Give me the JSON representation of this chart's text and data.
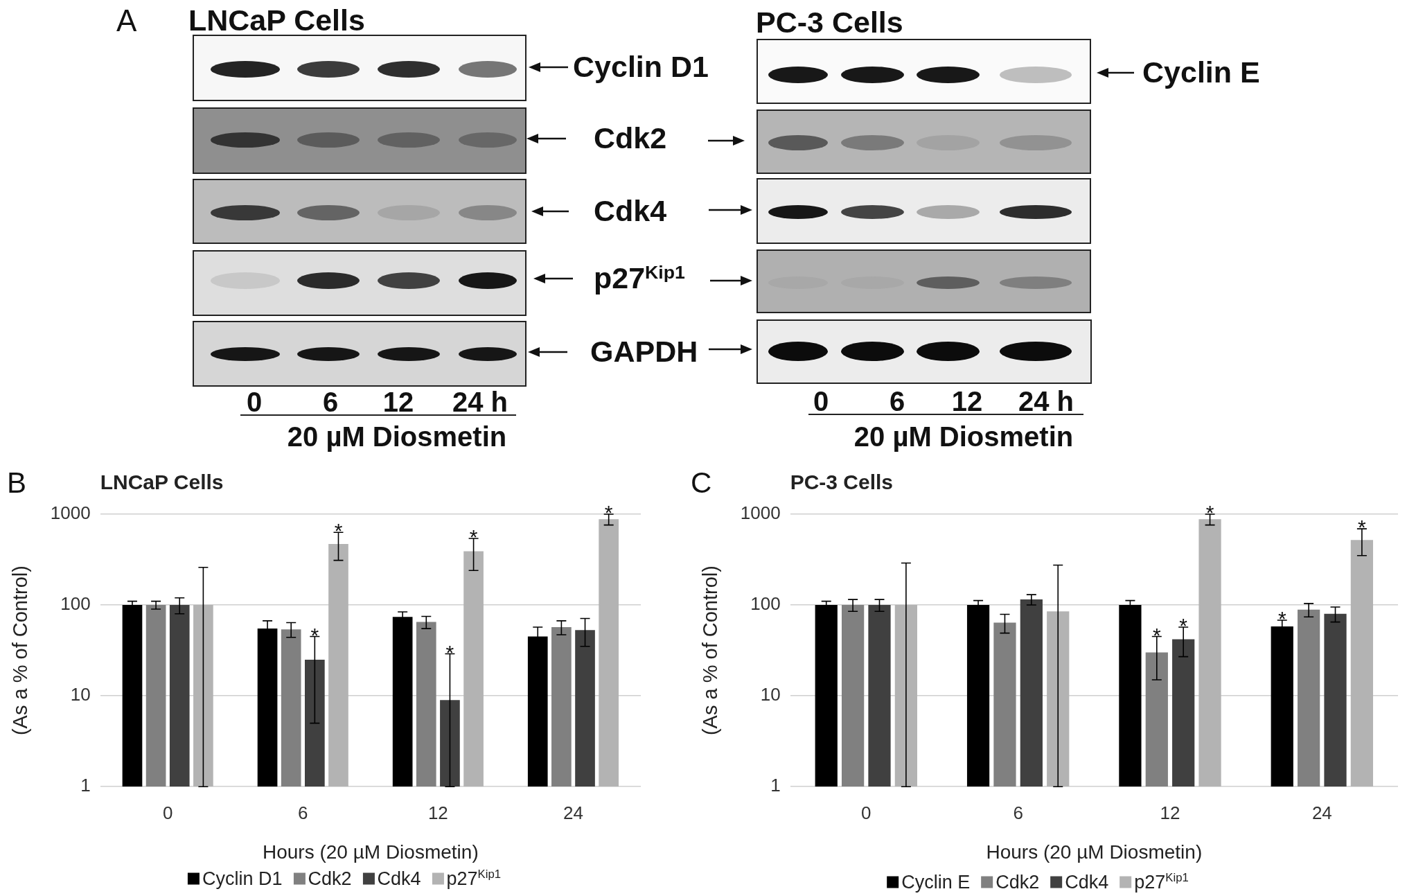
{
  "chart_data": [
    {
      "type": "other",
      "annotations": [
        "A",
        "LNCaP Cells",
        "Cyclin D1",
        "Cdk2",
        "Cdk4",
        "p27$^{Kip1}$",
        "GAPDH",
        "0",
        "6",
        "12",
        "24 h",
        "20 µM Diosmetin",
        "PC-3 Cells",
        "Cyclin E",
        "0",
        "6",
        "12",
        "24 h",
        "20 µM Diosmetin"
      ]
    },
    {
      "type": "bar",
      "title": "LNCaP Cells",
      "annotations": [
        "B"
      ],
      "xlabel": "Hours (20 µM Diosmetin)",
      "ylabel": "(As a % of Control)",
      "categories": [
        "0",
        "6",
        "12",
        "24"
      ],
      "series": [
        {
          "name": "Cyclin D1",
          "color": "#000000",
          "values": [
            100,
            55,
            74,
            45
          ],
          "errors": [
            10,
            12,
            10,
            12
          ]
        },
        {
          "name": "Cdk2",
          "color": "#808080",
          "values": [
            100,
            54,
            65,
            57
          ],
          "errors": [
            10,
            10,
            10,
            10
          ]
        },
        {
          "name": "Cdk4",
          "color": "#404040",
          "values": [
            100,
            25,
            9,
            53
          ],
          "errors": [
            20,
            20,
            [
              1,
              29
            ],
            18
          ],
          "value_labels": [
            null,
            "*",
            "*",
            null
          ]
        },
        {
          "name": "p27$^{Kip1}$",
          "color": "#b3b3b3",
          "values": [
            100,
            470,
            390,
            880
          ],
          "errors": [
            [
              1,
              260
            ],
            160,
            150,
            120
          ],
          "value_labels": [
            null,
            "*",
            "*",
            "*"
          ]
        }
      ],
      "ylim": [
        1,
        1000
      ],
      "yticks": [
        1,
        10,
        100,
        1000
      ],
      "log": true,
      "grid": "y",
      "legend": "bottom"
    },
    {
      "type": "bar",
      "title": "PC-3 Cells",
      "annotations": [
        "C"
      ],
      "xlabel": "Hours (20 µM Diosmetin)",
      "ylabel": "(As a % of Control)",
      "categories": [
        "0",
        "6",
        "12",
        "24"
      ],
      "series": [
        {
          "name": "Cyclin E",
          "color": "#000000",
          "values": [
            100,
            100,
            100,
            58
          ],
          "errors": [
            10,
            12,
            12,
            10
          ],
          "value_labels": [
            null,
            null,
            null,
            "*"
          ]
        },
        {
          "name": "Cdk2",
          "color": "#808080",
          "values": [
            100,
            64,
            30,
            89
          ],
          "errors": [
            15,
            15,
            15,
            15
          ],
          "value_labels": [
            null,
            null,
            "*",
            null
          ]
        },
        {
          "name": "Cdk4",
          "color": "#404040",
          "values": [
            100,
            115,
            42,
            80
          ],
          "errors": [
            15,
            15,
            15,
            15
          ],
          "value_labels": [
            null,
            null,
            "*",
            null
          ]
        },
        {
          "name": "p27$^{Kip1}$",
          "color": "#b3b3b3",
          "values": [
            100,
            85,
            880,
            520
          ],
          "errors": [
            [
              1,
              290
            ],
            [
              1,
              275
            ],
            120,
            170
          ],
          "value_labels": [
            null,
            null,
            "*",
            "*"
          ]
        }
      ],
      "ylim": [
        1,
        1000
      ],
      "yticks": [
        1,
        10,
        100,
        1000
      ],
      "log": true,
      "grid": "y",
      "legend": "bottom"
    }
  ]
}
